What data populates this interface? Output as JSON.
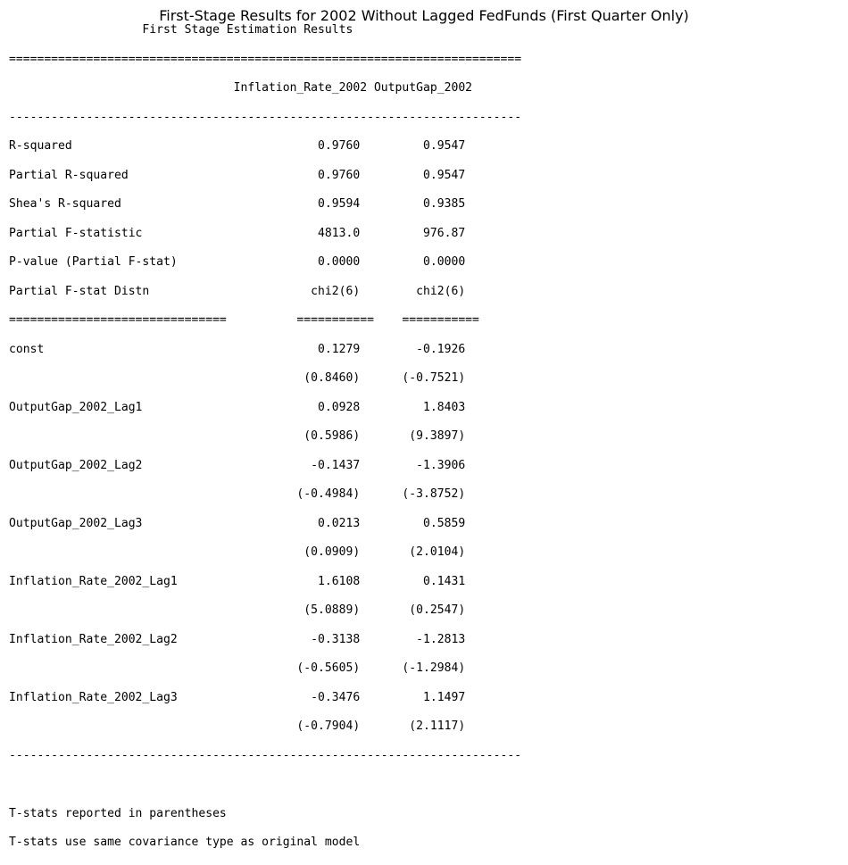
{
  "title": "First-Stage Results for 2002 Without Lagged FedFunds (First Quarter Only)",
  "report_lines": [
    "                   First Stage Estimation Results",
    "=========================================================================",
    "                                Inflation_Rate_2002 OutputGap_2002",
    "-------------------------------------------------------------------------",
    "R-squared                                   0.9760         0.9547",
    "Partial R-squared                           0.9760         0.9547",
    "Shea's R-squared                            0.9594         0.9385",
    "Partial F-statistic                         4813.0         976.87",
    "P-value (Partial F-stat)                    0.0000         0.0000",
    "Partial F-stat Distn                       chi2(6)        chi2(6)",
    "===============================          ===========    ===========",
    "const                                       0.1279        -0.1926",
    "                                          (0.8460)      (-0.7521)",
    "OutputGap_2002_Lag1                         0.0928         1.8403",
    "                                          (0.5986)       (9.3897)",
    "OutputGap_2002_Lag2                        -0.1437        -1.3906",
    "                                         (-0.4984)      (-3.8752)",
    "OutputGap_2002_Lag3                         0.0213         0.5859",
    "                                          (0.0909)       (2.0104)",
    "Inflation_Rate_2002_Lag1                    1.6108         0.1431",
    "                                          (5.0889)       (0.2547)",
    "Inflation_Rate_2002_Lag2                   -0.3138        -1.2813",
    "                                         (-0.5605)      (-1.2984)",
    "Inflation_Rate_2002_Lag3                   -0.3476         1.1497",
    "                                         (-0.7904)       (2.1117)",
    "-------------------------------------------------------------------------",
    "",
    "T-stats reported in parentheses",
    "T-stats use same covariance type as original model"
  ]
}
